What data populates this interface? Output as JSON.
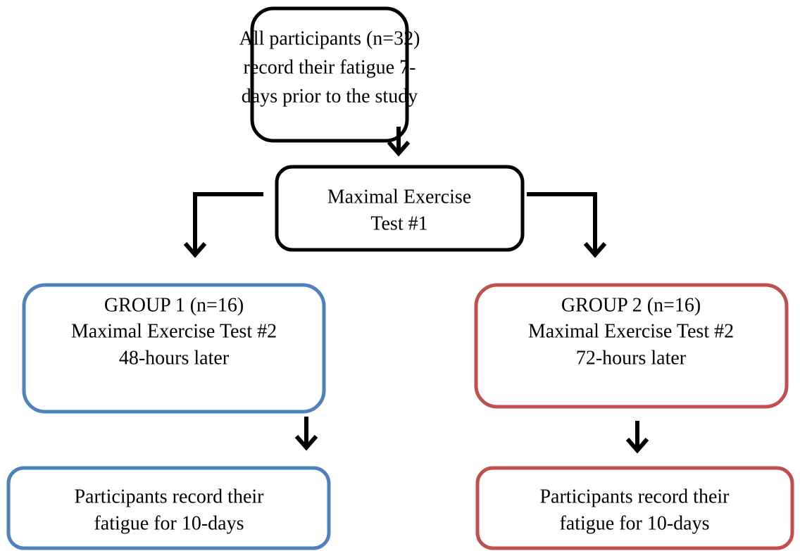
{
  "nodes": [
    {
      "lines": [
        "All participants (n=32)",
        "record their fatigue 7-",
        "days prior to the study"
      ]
    },
    {
      "lines": [
        "Maximal Exercise",
        "Test #1"
      ]
    },
    {
      "lines": [
        "GROUP 1 (n=16)",
        "Maximal Exercise Test #2",
        "48-hours later"
      ]
    },
    {
      "lines": [
        "GROUP 2 (n=16)",
        "Maximal Exercise Test #2",
        "72-hours later"
      ]
    },
    {
      "lines": [
        "Participants record their",
        "fatigue for 10-days"
      ]
    },
    {
      "lines": [
        "Participants record their",
        "fatigue for 10-days"
      ]
    }
  ]
}
